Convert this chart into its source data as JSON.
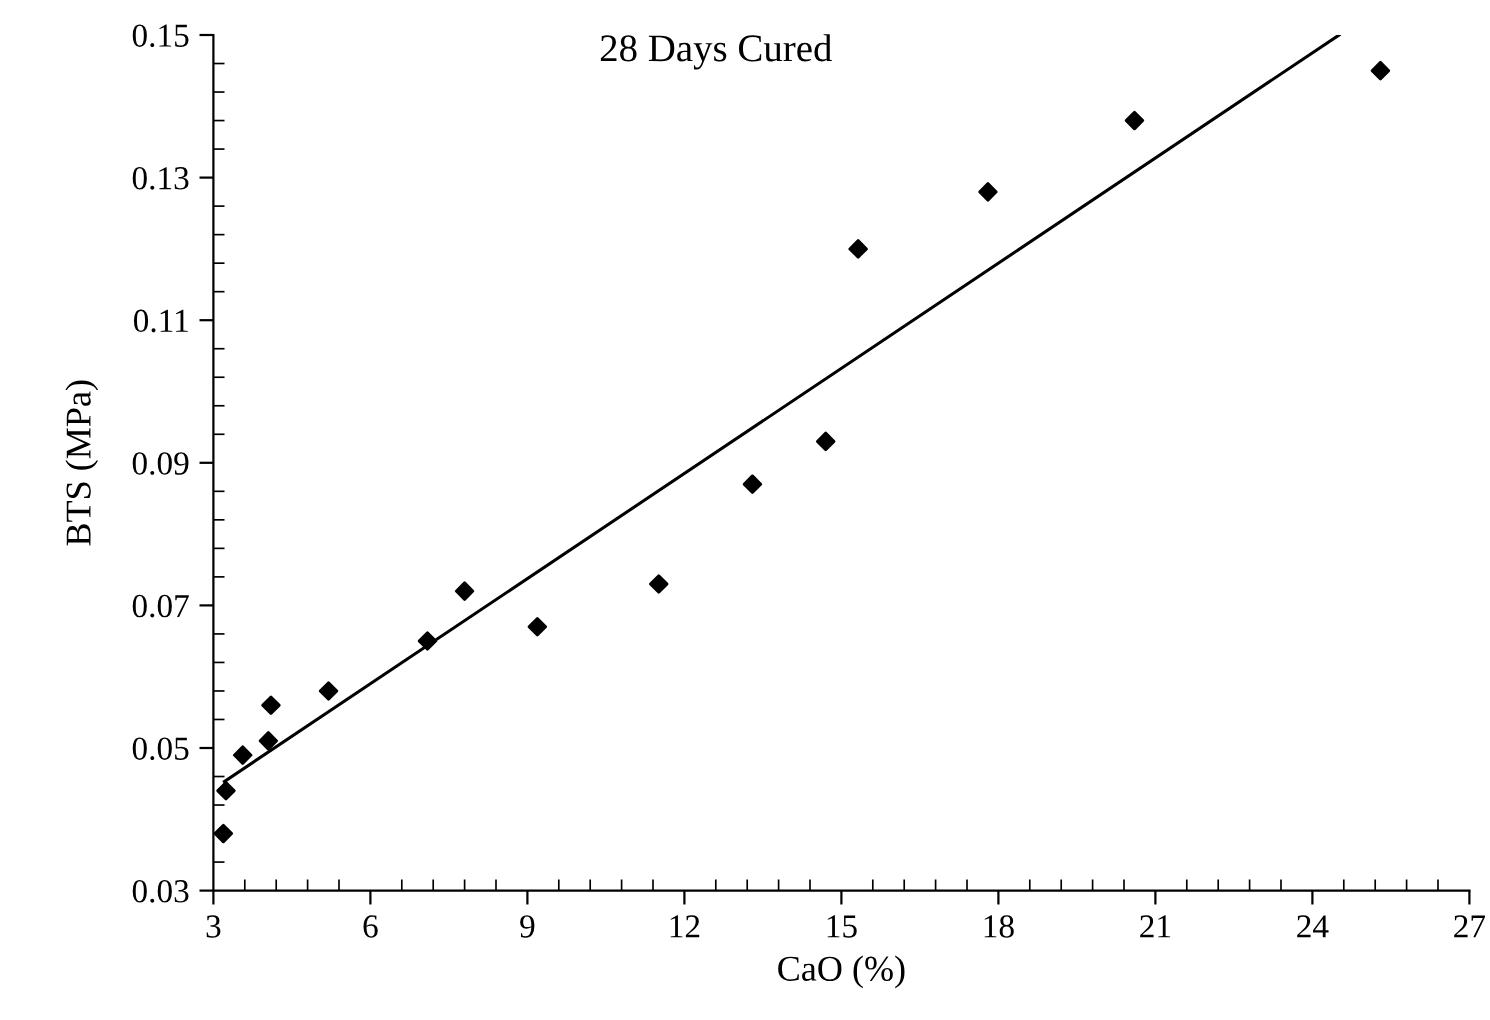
{
  "chart_data": {
    "type": "scatter",
    "title": "28 Days Cured",
    "xlabel": "CaO (%)",
    "ylabel": "BTS (MPa)",
    "series": [
      {
        "color": "#000000",
        "marker": "diamond",
        "x": [
          3.19,
          3.24,
          3.56,
          4.05,
          4.1,
          5.2,
          7.09,
          7.8,
          9.19,
          11.51,
          13.3,
          14.7,
          15.32,
          17.8,
          20.6,
          25.3
        ],
        "values": [
          0.038,
          0.044,
          0.049,
          0.051,
          0.056,
          0.058,
          0.065,
          0.072,
          0.067,
          0.073,
          0.087,
          0.093,
          0.12,
          0.128,
          0.138,
          0.145
        ]
      },
      {
        "type": "line",
        "color": "#000000",
        "marker": "none",
        "line_style": "solid",
        "x": [
          3.21,
          24.51
        ],
        "values": [
          0.0453,
          0.15
        ]
      }
    ],
    "xlim": [
      3,
      27
    ],
    "ylim": [
      0.03,
      0.15
    ],
    "xticks": [
      3,
      {
        "value": 3.6,
        "label": null
      },
      {
        "value": 4.2,
        "label": null
      },
      {
        "value": 4.8,
        "label": null
      },
      {
        "value": 5.4,
        "label": null
      },
      6,
      {
        "value": 6.6,
        "label": null
      },
      {
        "value": 7.2,
        "label": null
      },
      {
        "value": 7.8,
        "label": null
      },
      {
        "value": 8.4,
        "label": null
      },
      9,
      {
        "value": 9.6,
        "label": null
      },
      {
        "value": 10.2,
        "label": null
      },
      {
        "value": 10.8,
        "label": null
      },
      {
        "value": 11.4,
        "label": null
      },
      12,
      {
        "value": 12.6,
        "label": null
      },
      {
        "value": 13.2,
        "label": null
      },
      {
        "value": 13.8,
        "label": null
      },
      {
        "value": 14.4,
        "label": null
      },
      15,
      {
        "value": 15.6,
        "label": null
      },
      {
        "value": 16.2,
        "label": null
      },
      {
        "value": 16.8,
        "label": null
      },
      {
        "value": 17.4,
        "label": null
      },
      18,
      {
        "value": 18.6,
        "label": null
      },
      {
        "value": 19.2,
        "label": null
      },
      {
        "value": 19.8,
        "label": null
      },
      {
        "value": 20.4,
        "label": null
      },
      21,
      {
        "value": 21.6,
        "label": null
      },
      {
        "value": 22.2,
        "label": null
      },
      {
        "value": 22.8,
        "label": null
      },
      {
        "value": 23.4,
        "label": null
      },
      24,
      {
        "value": 24.6,
        "label": null
      },
      {
        "value": 25.2,
        "label": null
      },
      {
        "value": 25.8,
        "label": null
      },
      {
        "value": 26.4,
        "label": null
      },
      27
    ],
    "yticks": [
      0.03,
      {
        "value": 0.034,
        "label": null
      },
      {
        "value": 0.038,
        "label": null
      },
      {
        "value": 0.042,
        "label": null
      },
      {
        "value": 0.046,
        "label": null
      },
      0.05,
      {
        "value": 0.054,
        "label": null
      },
      {
        "value": 0.058,
        "label": null
      },
      {
        "value": 0.062,
        "label": null
      },
      {
        "value": 0.066,
        "label": null
      },
      0.07,
      {
        "value": 0.074,
        "label": null
      },
      {
        "value": 0.078,
        "label": null
      },
      {
        "value": 0.082,
        "label": null
      },
      {
        "value": 0.086,
        "label": null
      },
      0.09,
      {
        "value": 0.094,
        "label": null
      },
      {
        "value": 0.098,
        "label": null
      },
      {
        "value": 0.102,
        "label": null
      },
      {
        "value": 0.106,
        "label": null
      },
      0.11,
      {
        "value": 0.114,
        "label": null
      },
      {
        "value": 0.118,
        "label": null
      },
      {
        "value": 0.122,
        "label": null
      },
      {
        "value": 0.126,
        "label": null
      },
      0.13,
      {
        "value": 0.134,
        "label": null
      },
      {
        "value": 0.138,
        "label": null
      },
      {
        "value": 0.142,
        "label": null
      },
      {
        "value": 0.146,
        "label": null
      },
      0.15
    ],
    "grid": false,
    "legend": false
  }
}
